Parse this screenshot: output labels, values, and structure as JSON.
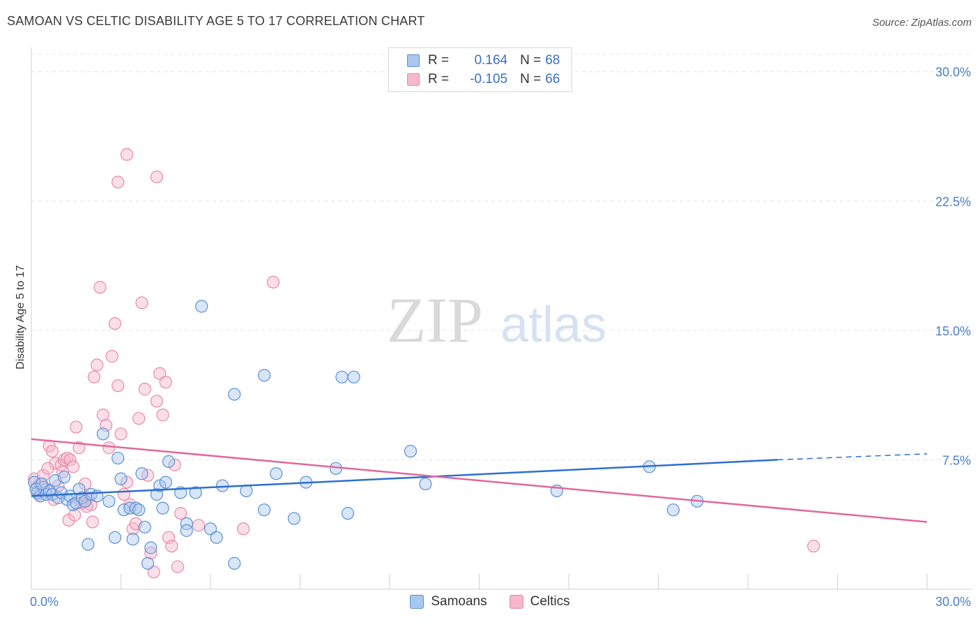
{
  "header": {
    "title": "SAMOAN VS CELTIC DISABILITY AGE 5 TO 17 CORRELATION CHART",
    "source": "Source: ZipAtlas.com"
  },
  "legend": {
    "samoans": {
      "r_label": "R =",
      "r_value": "0.164",
      "n_label": "N =",
      "n_value": "68"
    },
    "celtics": {
      "r_label": "R =",
      "r_value": "-0.105",
      "n_label": "N =",
      "n_value": "66"
    }
  },
  "bottom_legend": {
    "samoans": "Samoans",
    "celtics": "Celtics"
  },
  "watermark": {
    "zip": "ZIP",
    "atlas": "atlas"
  },
  "colors": {
    "samoans_fill": "#a9c8ef",
    "samoans_stroke": "#5b8fd6",
    "samoans_line": "#2d6fcf",
    "celtics_fill": "#f6b8cb",
    "celtics_stroke": "#e889a8",
    "celtics_line": "#e0689a",
    "tick_text": "#4a7fc8",
    "grid": "#e3e3e3"
  },
  "chart_data": {
    "type": "scatter",
    "title": "SAMOAN VS CELTIC DISABILITY AGE 5 TO 17 CORRELATION CHART",
    "xlabel": "",
    "ylabel": "Disability Age 5 to 17",
    "xlim": [
      0,
      30
    ],
    "ylim": [
      0,
      31
    ],
    "y_ticks": [
      7.5,
      15.0,
      22.5,
      30.0
    ],
    "y_tick_labels": [
      "7.5%",
      "15.0%",
      "22.5%",
      "30.0%"
    ],
    "x_tick_labels": [
      "0.0%",
      "30.0%"
    ],
    "series": [
      {
        "name": "Samoans",
        "r": 0.164,
        "n": 68,
        "trend": {
          "x0": 0,
          "y0": 5.4,
          "x1": 25,
          "y1": 7.5,
          "dashed_to_x": 30,
          "dashed_to_y": 7.85
        },
        "points": [
          [
            0.1,
            6.2
          ],
          [
            0.2,
            5.6
          ],
          [
            0.3,
            5.4
          ],
          [
            0.4,
            5.9
          ],
          [
            0.5,
            5.5
          ],
          [
            0.6,
            5.7
          ],
          [
            0.7,
            5.5
          ],
          [
            0.8,
            6.3
          ],
          [
            0.9,
            5.3
          ],
          [
            1.0,
            5.6
          ],
          [
            1.1,
            6.5
          ],
          [
            1.2,
            5.2
          ],
          [
            1.3,
            5.4
          ],
          [
            1.4,
            4.9
          ],
          [
            1.5,
            5.0
          ],
          [
            1.6,
            5.8
          ],
          [
            1.7,
            5.3
          ],
          [
            1.8,
            5.1
          ],
          [
            1.9,
            2.6
          ],
          [
            2.0,
            5.5
          ],
          [
            2.2,
            5.4
          ],
          [
            2.4,
            9.0
          ],
          [
            2.6,
            5.1
          ],
          [
            2.8,
            3.0
          ],
          [
            2.9,
            7.6
          ],
          [
            3.0,
            6.4
          ],
          [
            3.1,
            4.6
          ],
          [
            3.3,
            4.7
          ],
          [
            3.4,
            2.9
          ],
          [
            3.5,
            4.7
          ],
          [
            3.6,
            4.6
          ],
          [
            3.7,
            6.7
          ],
          [
            3.8,
            3.6
          ],
          [
            3.9,
            1.5
          ],
          [
            4.0,
            2.4
          ],
          [
            4.2,
            5.5
          ],
          [
            4.3,
            6.0
          ],
          [
            4.4,
            4.7
          ],
          [
            4.5,
            6.2
          ],
          [
            4.6,
            7.4
          ],
          [
            5.0,
            5.6
          ],
          [
            5.2,
            3.8
          ],
          [
            5.2,
            3.4
          ],
          [
            5.5,
            5.6
          ],
          [
            5.7,
            16.4
          ],
          [
            6.0,
            3.5
          ],
          [
            6.2,
            3.0
          ],
          [
            6.4,
            6.0
          ],
          [
            6.8,
            1.5
          ],
          [
            6.8,
            11.3
          ],
          [
            7.2,
            5.7
          ],
          [
            7.8,
            12.4
          ],
          [
            7.8,
            4.6
          ],
          [
            8.2,
            6.7
          ],
          [
            8.8,
            4.1
          ],
          [
            9.2,
            6.2
          ],
          [
            10.2,
            7.0
          ],
          [
            10.4,
            12.3
          ],
          [
            10.6,
            4.4
          ],
          [
            10.8,
            12.3
          ],
          [
            12.7,
            8.0
          ],
          [
            13.2,
            6.1
          ],
          [
            17.6,
            5.7
          ],
          [
            20.7,
            7.1
          ],
          [
            21.5,
            4.6
          ],
          [
            22.3,
            5.1
          ],
          [
            0.15,
            5.8
          ],
          [
            0.35,
            6.1
          ]
        ]
      },
      {
        "name": "Celtics",
        "r": -0.105,
        "n": 66,
        "trend": {
          "x0": 0,
          "y0": 8.7,
          "x1": 30,
          "y1": 3.9
        },
        "points": [
          [
            0.1,
            6.4
          ],
          [
            0.2,
            5.9
          ],
          [
            0.3,
            6.1
          ],
          [
            0.4,
            6.6
          ],
          [
            0.5,
            5.8
          ],
          [
            0.6,
            8.3
          ],
          [
            0.7,
            8.0
          ],
          [
            0.8,
            7.3
          ],
          [
            0.9,
            6.0
          ],
          [
            1.0,
            7.2
          ],
          [
            1.1,
            7.5
          ],
          [
            1.2,
            7.6
          ],
          [
            1.3,
            7.5
          ],
          [
            1.4,
            7.1
          ],
          [
            1.5,
            9.4
          ],
          [
            1.6,
            8.2
          ],
          [
            1.7,
            5.0
          ],
          [
            1.8,
            6.1
          ],
          [
            1.9,
            5.3
          ],
          [
            2.0,
            4.9
          ],
          [
            2.1,
            12.3
          ],
          [
            2.2,
            13.0
          ],
          [
            2.3,
            17.5
          ],
          [
            2.4,
            10.1
          ],
          [
            2.5,
            9.5
          ],
          [
            2.6,
            8.2
          ],
          [
            2.7,
            13.5
          ],
          [
            2.8,
            15.4
          ],
          [
            2.9,
            11.8
          ],
          [
            3.0,
            9.0
          ],
          [
            3.1,
            5.5
          ],
          [
            3.2,
            6.2
          ],
          [
            3.3,
            4.9
          ],
          [
            3.4,
            3.5
          ],
          [
            3.5,
            3.8
          ],
          [
            3.6,
            9.9
          ],
          [
            3.7,
            16.6
          ],
          [
            3.8,
            11.6
          ],
          [
            3.9,
            6.6
          ],
          [
            4.0,
            2.1
          ],
          [
            4.1,
            1.0
          ],
          [
            4.2,
            10.9
          ],
          [
            4.3,
            12.5
          ],
          [
            4.4,
            10.1
          ],
          [
            4.5,
            12.0
          ],
          [
            4.6,
            3.0
          ],
          [
            4.7,
            2.5
          ],
          [
            4.8,
            7.2
          ],
          [
            4.9,
            1.3
          ],
          [
            5.0,
            4.4
          ],
          [
            2.9,
            23.6
          ],
          [
            3.2,
            25.2
          ],
          [
            4.2,
            23.9
          ],
          [
            7.1,
            3.5
          ],
          [
            5.6,
            3.7
          ],
          [
            8.1,
            17.8
          ],
          [
            26.2,
            2.5
          ],
          [
            0.25,
            5.5
          ],
          [
            0.55,
            7.0
          ],
          [
            0.75,
            5.2
          ],
          [
            1.05,
            6.8
          ],
          [
            1.25,
            4.0
          ],
          [
            1.45,
            4.3
          ],
          [
            1.65,
            5.0
          ],
          [
            1.85,
            4.8
          ],
          [
            2.05,
            3.9
          ]
        ]
      }
    ]
  }
}
